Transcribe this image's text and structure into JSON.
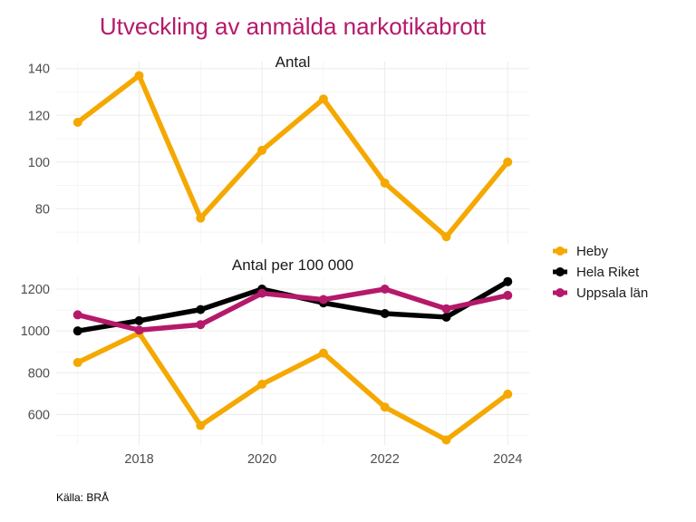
{
  "chart_data": {
    "type": "line",
    "title": "Utveckling av anmälda narkotikabrott",
    "caption": "Källa: BRÅ",
    "x": [
      2017,
      2018,
      2019,
      2020,
      2021,
      2022,
      2023,
      2024
    ],
    "x_ticks": [
      "2018",
      "2020",
      "2022",
      "2024"
    ],
    "x_tick_values": [
      2018,
      2020,
      2022,
      2024
    ],
    "xlim": [
      2016.65,
      2024.35
    ],
    "legend_position": "right",
    "legend": [
      {
        "name": "Heby",
        "color": "#f5a800"
      },
      {
        "name": "Hela Riket",
        "color": "#000000"
      },
      {
        "name": "Uppsala län",
        "color": "#b5196a"
      }
    ],
    "panels": [
      {
        "title": "Antal",
        "ylim": [
          65,
          143
        ],
        "y_ticks": [
          "80",
          "100",
          "120",
          "140"
        ],
        "y_tick_values": [
          80,
          100,
          120,
          140
        ],
        "y_minor": [
          70,
          90,
          110,
          130
        ],
        "series": [
          {
            "name": "Heby",
            "color": "#f5a800",
            "values": [
              117,
              137,
              76,
              105,
              127,
              91,
              68,
              100
            ]
          }
        ]
      },
      {
        "title": "Antal per 100 000",
        "ylim": [
          455,
          1265
        ],
        "y_ticks": [
          "600",
          "800",
          "1000",
          "1200"
        ],
        "y_tick_values": [
          600,
          800,
          1000,
          1200
        ],
        "y_minor": [
          500,
          700,
          900,
          1100
        ],
        "series": [
          {
            "name": "Heby",
            "color": "#f5a800",
            "values": [
              849,
              990,
              548,
              745,
              894,
              636,
              479,
              698
            ]
          },
          {
            "name": "Hela Riket",
            "color": "#000000",
            "values": [
              1000,
              1049,
              1102,
              1200,
              1134,
              1083,
              1066,
              1236
            ]
          },
          {
            "name": "Uppsala län",
            "color": "#b5196a",
            "values": [
              1077,
              1004,
              1030,
              1180,
              1150,
              1200,
              1106,
              1170
            ]
          }
        ]
      }
    ]
  }
}
